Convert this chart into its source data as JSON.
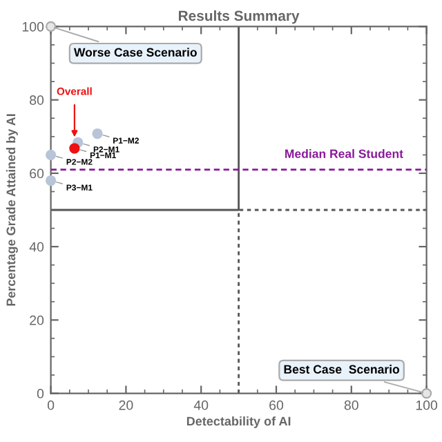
{
  "chart_data": {
    "type": "scatter",
    "title": "Results Summary",
    "xlabel": "Detectability of AI",
    "ylabel": "Percentage Grade Attained by AI",
    "xlim": [
      0,
      100
    ],
    "ylim": [
      0,
      100
    ],
    "xticks": [
      0,
      20,
      40,
      60,
      80,
      100
    ],
    "yticks": [
      0,
      20,
      40,
      60,
      80,
      100
    ],
    "grid": false,
    "marker": "circle",
    "series": [
      {
        "type": "line",
        "marker": "none",
        "line_style": "solid",
        "color": "#555555",
        "x": [
          0,
          50,
          50
        ],
        "values": [
          50,
          50,
          100
        ]
      },
      {
        "type": "line",
        "marker": "none",
        "line_style": "dotted",
        "color": "#555555",
        "x": [
          50,
          50,
          100
        ],
        "values": [
          0,
          50,
          50
        ]
      },
      {
        "color": "#b8c4d8",
        "x": [
          12.4,
          7.2,
          0,
          0
        ],
        "values": [
          70.8,
          68.4,
          65,
          58
        ]
      },
      {
        "name": "Overall",
        "color": "#ee1111",
        "x": [
          6.3
        ],
        "values": [
          66.8
        ]
      },
      {
        "name": "Worse Case Scenario",
        "color": "#e6e6e6",
        "x": [
          0
        ],
        "values": [
          100
        ]
      },
      {
        "name": "Best Case  Scenario",
        "color": "#e6e6e6",
        "x": [
          100
        ],
        "values": [
          0
        ]
      }
    ],
    "ref_lines": [
      {
        "axis": "y",
        "value": 61,
        "label": "Median Real Student",
        "color": "#8b1a9b",
        "line_style": "dashed"
      }
    ],
    "annotations": [
      {
        "text": "P1−M2",
        "x": 12.4,
        "y": 70.8
      },
      {
        "text": "P2−M1",
        "x": 7.2,
        "y": 68.4
      },
      {
        "text": "P1−M1",
        "x": 6.3,
        "y": 66.8
      },
      {
        "text": "P2−M2",
        "x": 0,
        "y": 65
      },
      {
        "text": "P3−M1",
        "x": 0,
        "y": 58
      }
    ]
  }
}
